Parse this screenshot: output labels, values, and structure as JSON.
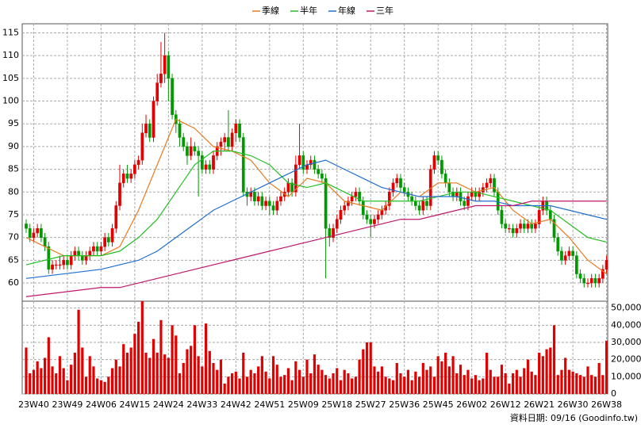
{
  "chart_data": {
    "type": "candlestick",
    "footer": "資料日期: 09/16 (Goodinfo.tw)",
    "grid": true,
    "up_color": "#e00000",
    "down_color": "#009900",
    "ylim": [
      56,
      117
    ],
    "yticks": [
      60,
      65,
      70,
      75,
      80,
      85,
      90,
      95,
      100,
      105,
      110,
      115
    ],
    "categories": [
      null,
      null,
      "23W40",
      null,
      null,
      null,
      null,
      null,
      null,
      null,
      null,
      "23W49",
      null,
      null,
      null,
      null,
      null,
      null,
      null,
      null,
      "24W06",
      null,
      null,
      null,
      null,
      null,
      null,
      null,
      null,
      "24W15",
      null,
      null,
      null,
      null,
      null,
      null,
      null,
      null,
      "24W24",
      null,
      null,
      null,
      null,
      null,
      null,
      null,
      null,
      "24W33",
      null,
      null,
      null,
      null,
      null,
      null,
      null,
      null,
      "24W42",
      null,
      null,
      null,
      null,
      null,
      null,
      null,
      null,
      "24W51",
      null,
      null,
      null,
      null,
      null,
      null,
      null,
      null,
      "25W09",
      null,
      null,
      null,
      null,
      null,
      null,
      null,
      null,
      "25W18",
      null,
      null,
      null,
      null,
      null,
      null,
      null,
      null,
      "25W27",
      null,
      null,
      null,
      null,
      null,
      null,
      null,
      null,
      "25W36",
      null,
      null,
      null,
      null,
      null,
      null,
      null,
      null,
      "25W45",
      null,
      null,
      null,
      null,
      null,
      null,
      null,
      null,
      "26W02",
      null,
      null,
      null,
      null,
      null,
      null,
      null,
      null,
      "26W12",
      null,
      null,
      null,
      null,
      null,
      null,
      null,
      null,
      "26W21",
      null,
      null,
      null,
      null,
      null,
      null,
      null,
      null,
      "26W30",
      null,
      null,
      null,
      null,
      null,
      null,
      null,
      null,
      "26W38"
    ],
    "ohlc": [
      [
        73,
        74,
        71,
        72
      ],
      [
        72,
        73,
        69,
        70
      ],
      [
        70,
        72,
        69,
        71
      ],
      [
        71,
        73,
        70,
        72
      ],
      [
        72,
        73,
        69,
        70
      ],
      [
        70,
        71,
        67,
        68
      ],
      [
        68,
        69,
        62,
        63
      ],
      [
        63,
        65,
        62,
        64
      ],
      [
        64,
        65,
        63,
        64
      ],
      [
        64,
        66,
        63,
        64
      ],
      [
        64,
        66,
        63,
        65
      ],
      [
        65,
        66,
        63,
        64
      ],
      [
        64,
        67,
        63,
        66
      ],
      [
        66,
        68,
        65,
        67
      ],
      [
        67,
        68,
        65,
        66
      ],
      [
        66,
        67,
        64,
        65
      ],
      [
        65,
        67,
        64,
        66
      ],
      [
        66,
        68,
        65,
        67
      ],
      [
        67,
        69,
        66,
        68
      ],
      [
        68,
        69,
        66,
        67
      ],
      [
        67,
        69,
        66,
        68
      ],
      [
        68,
        71,
        67,
        70
      ],
      [
        70,
        71,
        68,
        69
      ],
      [
        69,
        73,
        68,
        72
      ],
      [
        72,
        78,
        71,
        77
      ],
      [
        77,
        86,
        76,
        82
      ],
      [
        82,
        85,
        81,
        84
      ],
      [
        84,
        86,
        82,
        83
      ],
      [
        83,
        85,
        82,
        84
      ],
      [
        84,
        87,
        83,
        86
      ],
      [
        86,
        88,
        85,
        87
      ],
      [
        87,
        95,
        86,
        93
      ],
      [
        93,
        97,
        92,
        95
      ],
      [
        95,
        96,
        91,
        92
      ],
      [
        92,
        101,
        91,
        100
      ],
      [
        100,
        106,
        99,
        104
      ],
      [
        104,
        113,
        103,
        106
      ],
      [
        106,
        115,
        104,
        110
      ],
      [
        110,
        111,
        100,
        105
      ],
      [
        105,
        106,
        96,
        97
      ],
      [
        97,
        98,
        93,
        95
      ],
      [
        95,
        96,
        90,
        92
      ],
      [
        92,
        93,
        89,
        90
      ],
      [
        90,
        91,
        86,
        88
      ],
      [
        88,
        92,
        87,
        90
      ],
      [
        90,
        91,
        88,
        89
      ],
      [
        89,
        90,
        79,
        88
      ],
      [
        88,
        89,
        84,
        85
      ],
      [
        85,
        87,
        84,
        86
      ],
      [
        86,
        87,
        84,
        85
      ],
      [
        85,
        89,
        84,
        88
      ],
      [
        88,
        91,
        87,
        90
      ],
      [
        90,
        92,
        88,
        91
      ],
      [
        91,
        93,
        89,
        92
      ],
      [
        92,
        98,
        89,
        90
      ],
      [
        90,
        94,
        89,
        93
      ],
      [
        93,
        96,
        91,
        95
      ],
      [
        95,
        96,
        91,
        92
      ],
      [
        92,
        93,
        79,
        80
      ],
      [
        80,
        81,
        77,
        79
      ],
      [
        79,
        81,
        78,
        80
      ],
      [
        80,
        81,
        77,
        78
      ],
      [
        78,
        80,
        77,
        79
      ],
      [
        79,
        80,
        76,
        77
      ],
      [
        77,
        79,
        76,
        78
      ],
      [
        78,
        79,
        75,
        77
      ],
      [
        77,
        78,
        75,
        76
      ],
      [
        76,
        79,
        75,
        78
      ],
      [
        78,
        80,
        77,
        79
      ],
      [
        79,
        81,
        78,
        80
      ],
      [
        80,
        83,
        79,
        82
      ],
      [
        82,
        83,
        79,
        80
      ],
      [
        80,
        88,
        79,
        86
      ],
      [
        86,
        95,
        85,
        88
      ],
      [
        88,
        89,
        84,
        85
      ],
      [
        85,
        87,
        84,
        86
      ],
      [
        86,
        88,
        85,
        87
      ],
      [
        87,
        88,
        84,
        85
      ],
      [
        85,
        86,
        83,
        84
      ],
      [
        84,
        85,
        82,
        83
      ],
      [
        83,
        84,
        61,
        72
      ],
      [
        72,
        73,
        68,
        70
      ],
      [
        70,
        73,
        69,
        72
      ],
      [
        72,
        75,
        71,
        74
      ],
      [
        74,
        77,
        73,
        76
      ],
      [
        76,
        78,
        75,
        77
      ],
      [
        77,
        79,
        76,
        78
      ],
      [
        78,
        80,
        77,
        79
      ],
      [
        79,
        81,
        78,
        80
      ],
      [
        80,
        81,
        77,
        78
      ],
      [
        78,
        79,
        74,
        75
      ],
      [
        75,
        76,
        73,
        74
      ],
      [
        74,
        75,
        70,
        73
      ],
      [
        73,
        75,
        72,
        74
      ],
      [
        74,
        76,
        73,
        75
      ],
      [
        75,
        77,
        74,
        76
      ],
      [
        76,
        78,
        75,
        77
      ],
      [
        77,
        81,
        76,
        80
      ],
      [
        80,
        83,
        79,
        82
      ],
      [
        82,
        84,
        81,
        83
      ],
      [
        83,
        84,
        80,
        81
      ],
      [
        81,
        82,
        79,
        80
      ],
      [
        80,
        81,
        78,
        79
      ],
      [
        79,
        80,
        77,
        78
      ],
      [
        78,
        79,
        76,
        77
      ],
      [
        77,
        78,
        75,
        76
      ],
      [
        76,
        79,
        75,
        78
      ],
      [
        78,
        79,
        76,
        77
      ],
      [
        77,
        86,
        76,
        85
      ],
      [
        85,
        89,
        84,
        88
      ],
      [
        88,
        89,
        86,
        87
      ],
      [
        87,
        88,
        83,
        84
      ],
      [
        84,
        85,
        81,
        82
      ],
      [
        82,
        83,
        79,
        80
      ],
      [
        80,
        81,
        78,
        79
      ],
      [
        79,
        81,
        78,
        80
      ],
      [
        80,
        81,
        77,
        78
      ],
      [
        78,
        79,
        76,
        77
      ],
      [
        77,
        80,
        76,
        79
      ],
      [
        79,
        81,
        78,
        80
      ],
      [
        80,
        81,
        78,
        79
      ],
      [
        79,
        81,
        78,
        80
      ],
      [
        80,
        82,
        79,
        81
      ],
      [
        81,
        83,
        80,
        82
      ],
      [
        82,
        84,
        81,
        83
      ],
      [
        83,
        84,
        79,
        80
      ],
      [
        80,
        81,
        75,
        76
      ],
      [
        76,
        77,
        72,
        73
      ],
      [
        73,
        74,
        71,
        72
      ],
      [
        72,
        73,
        71,
        72
      ],
      [
        72,
        73,
        70,
        71
      ],
      [
        71,
        73,
        70,
        72
      ],
      [
        72,
        74,
        71,
        73
      ],
      [
        73,
        74,
        71,
        72
      ],
      [
        72,
        74,
        71,
        73
      ],
      [
        73,
        74,
        71,
        72
      ],
      [
        72,
        74,
        71,
        73
      ],
      [
        73,
        77,
        72,
        76
      ],
      [
        76,
        79,
        75,
        78
      ],
      [
        78,
        79,
        75,
        76
      ],
      [
        76,
        77,
        73,
        74
      ],
      [
        74,
        75,
        69,
        70
      ],
      [
        70,
        71,
        66,
        67
      ],
      [
        67,
        68,
        64,
        65
      ],
      [
        65,
        67,
        64,
        66
      ],
      [
        66,
        68,
        65,
        67
      ],
      [
        67,
        68,
        65,
        66
      ],
      [
        66,
        67,
        61,
        62
      ],
      [
        62,
        63,
        60,
        61
      ],
      [
        61,
        62,
        59,
        60
      ],
      [
        60,
        61,
        59,
        60
      ],
      [
        60,
        62,
        59,
        61
      ],
      [
        61,
        62,
        59,
        60
      ],
      [
        60,
        62,
        59,
        61
      ],
      [
        61,
        64,
        60,
        63
      ],
      [
        63,
        66,
        62,
        65
      ]
    ],
    "series": [
      {
        "name": "季線",
        "color": "#e87a1e",
        "x": [
          0,
          10,
          20,
          25,
          30,
          35,
          40,
          45,
          50,
          55,
          60,
          65,
          70,
          75,
          80,
          85,
          90,
          95,
          100,
          105,
          110,
          115,
          120,
          125,
          130,
          135,
          140,
          145,
          150,
          155
        ],
        "values": [
          70,
          66,
          66,
          68,
          76,
          86,
          96,
          94,
          90,
          89,
          87,
          82,
          79,
          83,
          82,
          78,
          77,
          76,
          80,
          79,
          82,
          82,
          80,
          81,
          76,
          73,
          74,
          70,
          65,
          62
        ]
      },
      {
        "name": "半年",
        "color": "#22c022",
        "x": [
          0,
          10,
          20,
          25,
          30,
          35,
          40,
          45,
          50,
          55,
          60,
          65,
          70,
          75,
          80,
          85,
          90,
          95,
          100,
          105,
          110,
          115,
          120,
          125,
          130,
          135,
          140,
          145,
          150,
          155
        ],
        "values": [
          64,
          66,
          66,
          67,
          70,
          74,
          80,
          86,
          89,
          89,
          88,
          86,
          82,
          81,
          82,
          80,
          78,
          78,
          78,
          78,
          79,
          80,
          80,
          79,
          78,
          77,
          76,
          73,
          70,
          69
        ]
      },
      {
        "name": "年線",
        "color": "#1f6fd0",
        "x": [
          0,
          10,
          20,
          25,
          30,
          35,
          40,
          45,
          50,
          55,
          60,
          65,
          70,
          75,
          80,
          85,
          90,
          95,
          100,
          105,
          110,
          115,
          120,
          125,
          130,
          135,
          140,
          145,
          150,
          155
        ],
        "values": [
          61,
          62,
          63,
          64,
          65,
          67,
          70,
          73,
          76,
          78,
          80,
          82,
          84,
          86,
          87,
          85,
          83,
          81,
          80,
          79,
          79,
          79,
          78,
          78,
          77,
          77,
          77,
          76,
          75,
          74
        ]
      },
      {
        "name": "三年",
        "color": "#c0186a",
        "x": [
          0,
          10,
          20,
          25,
          30,
          35,
          40,
          45,
          50,
          55,
          60,
          65,
          70,
          75,
          80,
          85,
          90,
          95,
          100,
          105,
          110,
          115,
          120,
          125,
          130,
          135,
          140,
          145,
          150,
          155
        ],
        "values": [
          57,
          58,
          59,
          59,
          60,
          61,
          62,
          63,
          64,
          65,
          66,
          67,
          68,
          69,
          70,
          71,
          72,
          73,
          74,
          74,
          75,
          76,
          77,
          77,
          77,
          78,
          78,
          78,
          78,
          78
        ]
      }
    ],
    "volume": {
      "color": "#e00000",
      "ylim": [
        0,
        54000
      ],
      "yticks": [
        0,
        {
          "value": 10000,
          "label": "10,000"
        },
        {
          "value": 20000,
          "label": "20,000"
        },
        {
          "value": 30000,
          "label": "30,000"
        },
        {
          "value": 40000,
          "label": "40,000"
        },
        {
          "value": 50000,
          "label": "50,000"
        }
      ],
      "values": [
        27000,
        12000,
        14000,
        19000,
        15000,
        21000,
        33000,
        16000,
        12000,
        22000,
        15000,
        8000,
        17000,
        24000,
        49000,
        27000,
        10000,
        22000,
        16000,
        9000,
        8000,
        7000,
        10000,
        15000,
        20000,
        16000,
        29000,
        24000,
        27000,
        35000,
        42000,
        56000,
        24000,
        21000,
        32000,
        24000,
        43000,
        23000,
        21000,
        40000,
        34000,
        12000,
        18000,
        26000,
        28000,
        40000,
        22000,
        16000,
        41000,
        25000,
        18000,
        14000,
        20000,
        6000,
        10000,
        12000,
        13000,
        9000,
        24000,
        10000,
        14000,
        12000,
        16000,
        22000,
        13000,
        9000,
        22000,
        17000,
        10000,
        11000,
        15000,
        8000,
        19000,
        14000,
        10000,
        20000,
        12000,
        23000,
        17000,
        14000,
        11000,
        9000,
        12000,
        15000,
        8000,
        14000,
        12000,
        9000,
        10000,
        20000,
        26000,
        30000,
        30000,
        16000,
        13000,
        16000,
        10000,
        9000,
        8000,
        18000,
        12000,
        10000,
        14000,
        8000,
        13000,
        10000,
        18000,
        14000,
        16000,
        10000,
        22000,
        19000,
        24000,
        16000,
        22000,
        12000,
        17000,
        11000,
        14000,
        9000,
        11000,
        8000,
        9000,
        24000,
        14000,
        10000,
        10000,
        17000,
        12000,
        6000,
        12000,
        14000,
        10000,
        15000,
        20000,
        13000,
        11000,
        24000,
        22000,
        26000,
        27000,
        40000,
        11000,
        14000,
        21000,
        14000,
        13000,
        12000,
        11000,
        10000,
        16000,
        11000,
        10000,
        18000,
        11000,
        31000
      ]
    }
  }
}
